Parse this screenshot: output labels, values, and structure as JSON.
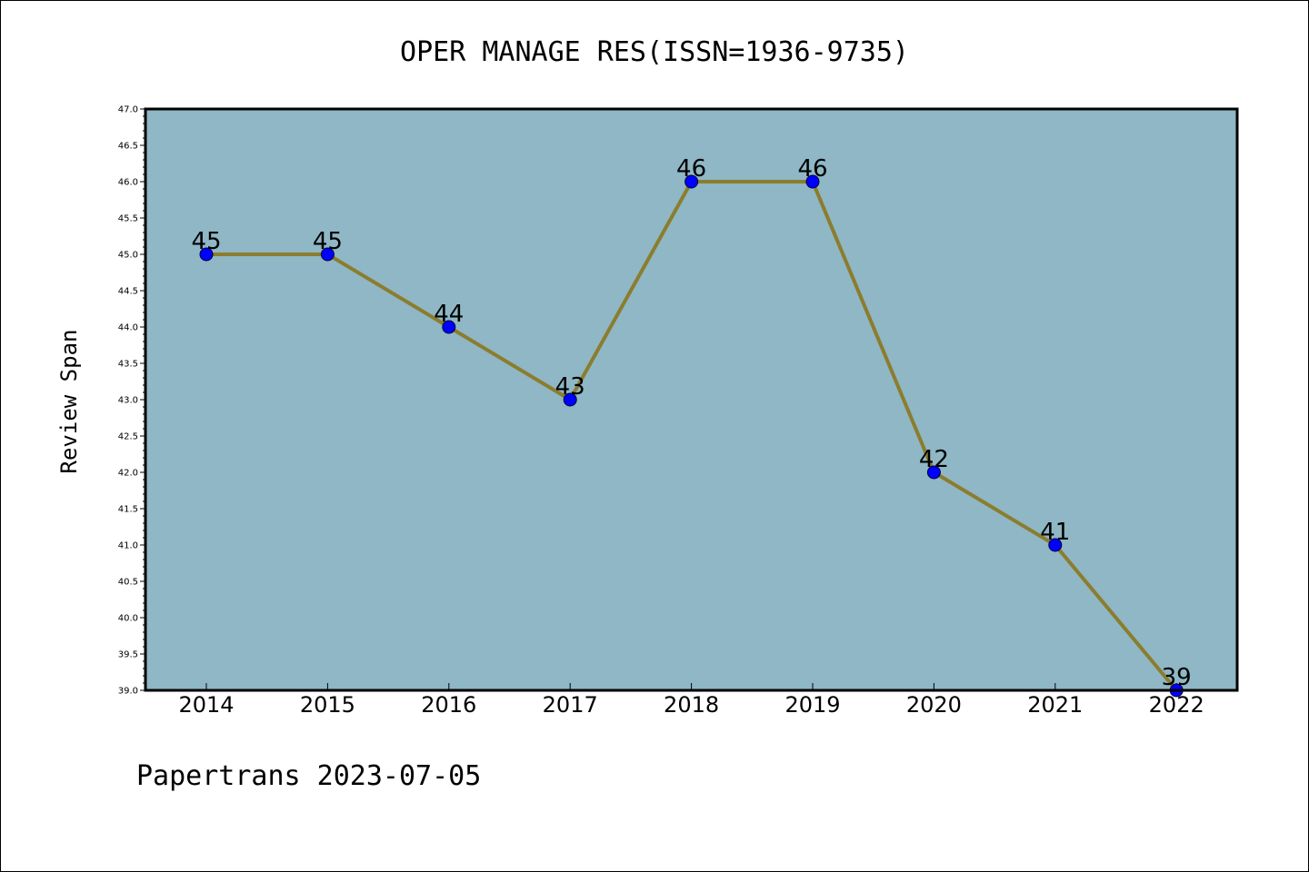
{
  "chart_data": {
    "type": "line",
    "title": "OPER MANAGE RES(ISSN=1936-9735)",
    "ylabel": "Review Span",
    "xlabel": "",
    "categories": [
      "2014",
      "2015",
      "2016",
      "2017",
      "2018",
      "2019",
      "2020",
      "2021",
      "2022"
    ],
    "series": [
      {
        "values": [
          45,
          45,
          44,
          43,
          46,
          46,
          42,
          41,
          39
        ],
        "data_labels": [
          "45",
          "45",
          "44",
          "43",
          "46",
          "46",
          "42",
          "41",
          "39"
        ]
      }
    ],
    "ylim": [
      39.0,
      47.0
    ],
    "yticks": [
      "39.0",
      "39.5",
      "40.0",
      "40.5",
      "41.0",
      "41.5",
      "42.0",
      "42.5",
      "43.0",
      "43.5",
      "44.0",
      "44.5",
      "45.0",
      "45.5",
      "46.0",
      "46.5",
      "47.0"
    ],
    "grid": false,
    "legend": "none",
    "colors": {
      "plot_background": "#8fb7c5",
      "line": "#8b7d2e",
      "marker": "#0000ff"
    }
  },
  "footer": {
    "text": "Papertrans 2023-07-05"
  }
}
